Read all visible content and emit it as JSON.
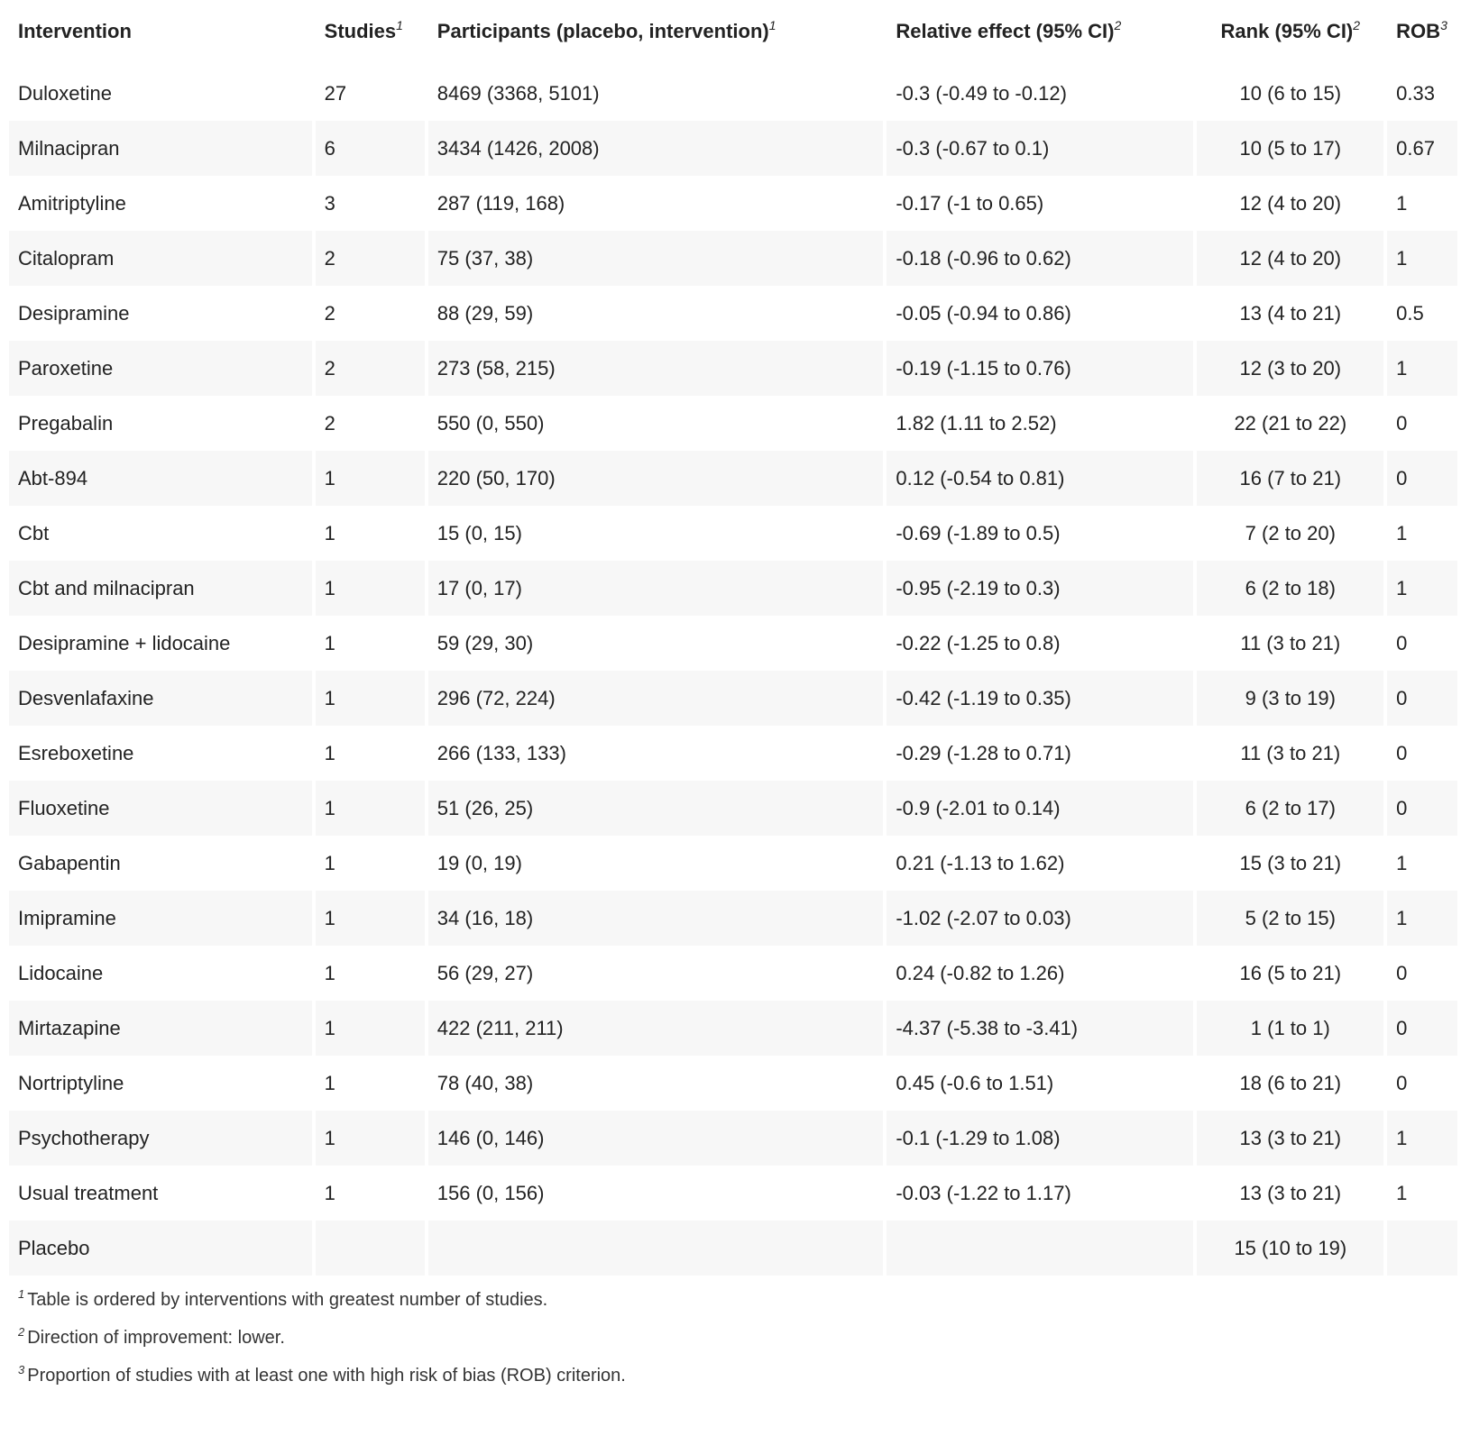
{
  "headers": {
    "intervention": "Intervention",
    "studies": "Studies",
    "studies_note": "1",
    "participants": "Participants (placebo, intervention)",
    "participants_note": "1",
    "relative_effect": "Relative effect (95% CI)",
    "relative_effect_note": "2",
    "rank": "Rank (95% CI)",
    "rank_note": "2",
    "rob": "ROB",
    "rob_note": "3"
  },
  "rows": [
    {
      "intervention": "Duloxetine",
      "studies": "27",
      "participants": "8469 (3368, 5101)",
      "effect": "-0.3 (-0.49 to -0.12)",
      "rank": "10 (6 to 15)",
      "rob": "0.33"
    },
    {
      "intervention": "Milnacipran",
      "studies": "6",
      "participants": "3434 (1426, 2008)",
      "effect": "-0.3 (-0.67 to 0.1)",
      "rank": "10 (5 to 17)",
      "rob": "0.67"
    },
    {
      "intervention": "Amitriptyline",
      "studies": "3",
      "participants": "287 (119, 168)",
      "effect": "-0.17 (-1 to 0.65)",
      "rank": "12 (4 to 20)",
      "rob": "1"
    },
    {
      "intervention": "Citalopram",
      "studies": "2",
      "participants": "75 (37, 38)",
      "effect": "-0.18 (-0.96 to 0.62)",
      "rank": "12 (4 to 20)",
      "rob": "1"
    },
    {
      "intervention": "Desipramine",
      "studies": "2",
      "participants": "88 (29, 59)",
      "effect": "-0.05 (-0.94 to 0.86)",
      "rank": "13 (4 to 21)",
      "rob": "0.5"
    },
    {
      "intervention": "Paroxetine",
      "studies": "2",
      "participants": "273 (58, 215)",
      "effect": "-0.19 (-1.15 to 0.76)",
      "rank": "12 (3 to 20)",
      "rob": "1"
    },
    {
      "intervention": "Pregabalin",
      "studies": "2",
      "participants": "550 (0, 550)",
      "effect": "1.82 (1.11 to 2.52)",
      "rank": "22 (21 to 22)",
      "rob": "0"
    },
    {
      "intervention": "Abt-894",
      "studies": "1",
      "participants": "220 (50, 170)",
      "effect": "0.12 (-0.54 to 0.81)",
      "rank": "16 (7 to 21)",
      "rob": "0"
    },
    {
      "intervention": "Cbt",
      "studies": "1",
      "participants": "15 (0, 15)",
      "effect": "-0.69 (-1.89 to 0.5)",
      "rank": "7 (2 to 20)",
      "rob": "1"
    },
    {
      "intervention": "Cbt and milnacipran",
      "studies": "1",
      "participants": "17 (0, 17)",
      "effect": "-0.95 (-2.19 to 0.3)",
      "rank": "6 (2 to 18)",
      "rob": "1"
    },
    {
      "intervention": "Desipramine + lidocaine",
      "studies": "1",
      "participants": "59 (29, 30)",
      "effect": "-0.22 (-1.25 to 0.8)",
      "rank": "11 (3 to 21)",
      "rob": "0"
    },
    {
      "intervention": "Desvenlafaxine",
      "studies": "1",
      "participants": "296 (72, 224)",
      "effect": "-0.42 (-1.19 to 0.35)",
      "rank": "9 (3 to 19)",
      "rob": "0"
    },
    {
      "intervention": "Esreboxetine",
      "studies": "1",
      "participants": "266 (133, 133)",
      "effect": "-0.29 (-1.28 to 0.71)",
      "rank": "11 (3 to 21)",
      "rob": "0"
    },
    {
      "intervention": "Fluoxetine",
      "studies": "1",
      "participants": "51 (26, 25)",
      "effect": "-0.9 (-2.01 to 0.14)",
      "rank": "6 (2 to 17)",
      "rob": "0"
    },
    {
      "intervention": "Gabapentin",
      "studies": "1",
      "participants": "19 (0, 19)",
      "effect": "0.21 (-1.13 to 1.62)",
      "rank": "15 (3 to 21)",
      "rob": "1"
    },
    {
      "intervention": "Imipramine",
      "studies": "1",
      "participants": "34 (16, 18)",
      "effect": "-1.02 (-2.07 to 0.03)",
      "rank": "5 (2 to 15)",
      "rob": "1"
    },
    {
      "intervention": "Lidocaine",
      "studies": "1",
      "participants": "56 (29, 27)",
      "effect": "0.24 (-0.82 to 1.26)",
      "rank": "16 (5 to 21)",
      "rob": "0"
    },
    {
      "intervention": "Mirtazapine",
      "studies": "1",
      "participants": "422 (211, 211)",
      "effect": "-4.37 (-5.38 to -3.41)",
      "rank": "1 (1 to 1)",
      "rob": "0"
    },
    {
      "intervention": "Nortriptyline",
      "studies": "1",
      "participants": "78 (40, 38)",
      "effect": "0.45 (-0.6 to 1.51)",
      "rank": "18 (6 to 21)",
      "rob": "0"
    },
    {
      "intervention": "Psychotherapy",
      "studies": "1",
      "participants": "146 (0, 146)",
      "effect": "-0.1 (-1.29 to 1.08)",
      "rank": "13 (3 to 21)",
      "rob": "1"
    },
    {
      "intervention": "Usual treatment",
      "studies": "1",
      "participants": "156 (0, 156)",
      "effect": "-0.03 (-1.22 to 1.17)",
      "rank": "13 (3 to 21)",
      "rob": "1"
    },
    {
      "intervention": "Placebo",
      "studies": "",
      "participants": "",
      "effect": "",
      "rank": "15 (10 to 19)",
      "rob": ""
    }
  ],
  "footnotes": [
    {
      "mark": "1",
      "text": "Table is ordered by interventions with greatest number of studies."
    },
    {
      "mark": "2",
      "text": "Direction of improvement: lower."
    },
    {
      "mark": "3",
      "text": "Proportion of studies with at least one with high risk of bias (ROB) criterion."
    }
  ]
}
